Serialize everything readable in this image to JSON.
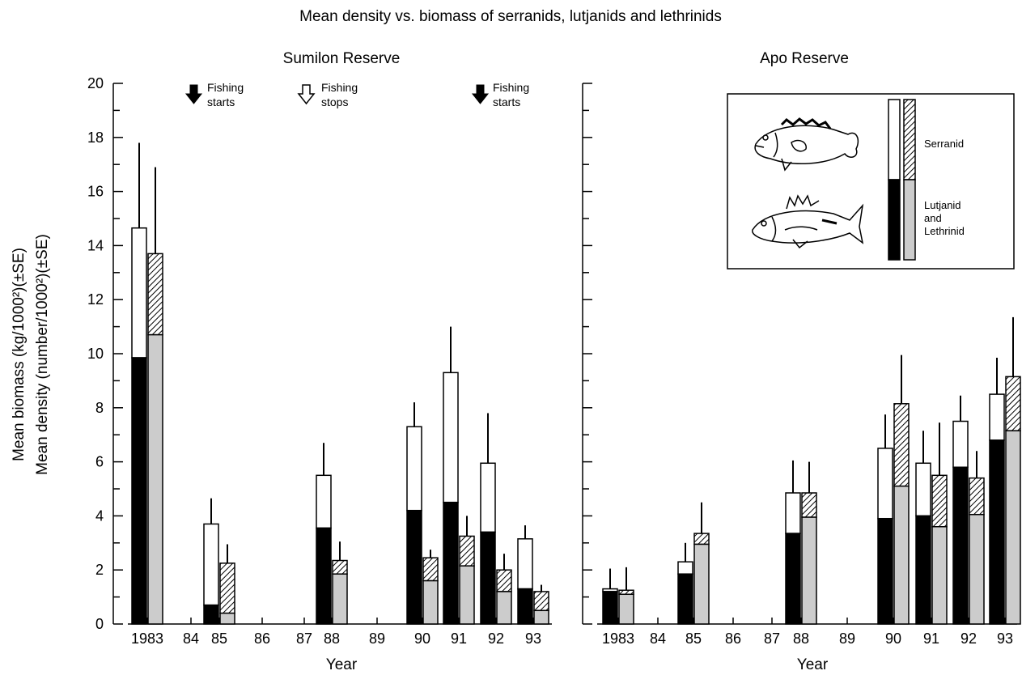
{
  "title": "Mean density vs. biomass of serranids, lutjanids and lethrinids",
  "ylabel_line1": "Mean biomass (kg/1000²)(±SE)",
  "ylabel_line2": "Mean density (number/1000²)(±SE)",
  "xlabel": "Year",
  "colors": {
    "biomass_serranid": "#ffffff",
    "biomass_lutjanid_lethrinid": "#000000",
    "density_serranid": "hatched",
    "density_lutjanid_lethrinid": "#cccccc"
  },
  "annotations": [
    {
      "year": "84",
      "arrow": "filled",
      "line1": "Fishing",
      "line2": "starts"
    },
    {
      "year": "87",
      "arrow": "open",
      "line1": "Fishing",
      "line2": "stops"
    },
    {
      "year": "91",
      "arrow": "filled",
      "line1": "Fishing",
      "line2": "starts"
    }
  ],
  "legend": {
    "serranid_label": "Serranid",
    "lutjanid_label_line1": "Lutjanid",
    "lutjanid_label_line2": "and",
    "lutjanid_label_line3": "Lethrinid",
    "icons": [
      "serranid-fish-icon",
      "lutjanid-fish-icon"
    ]
  },
  "chart_data": [
    {
      "type": "bar",
      "panel": "Sumilon Reserve",
      "title": "Sumilon Reserve",
      "xlabel": "Year",
      "categories": [
        "1983",
        "84",
        "85",
        "86",
        "87",
        "88",
        "89",
        "90",
        "91",
        "92",
        "93"
      ],
      "ylim": [
        0,
        20
      ],
      "yticks": [
        0,
        2,
        4,
        6,
        8,
        10,
        12,
        14,
        16,
        18,
        20
      ],
      "stacked": true,
      "biomass": {
        "lutjanid_lethrinid": [
          9.85,
          null,
          0.7,
          null,
          null,
          3.55,
          null,
          4.2,
          4.5,
          3.4,
          1.3
        ],
        "serranid": [
          4.8,
          null,
          3.0,
          null,
          null,
          1.95,
          null,
          3.1,
          4.8,
          2.55,
          1.85
        ],
        "total": [
          14.65,
          null,
          3.7,
          null,
          null,
          5.5,
          null,
          7.3,
          9.3,
          5.95,
          3.15
        ],
        "total_plus_se": [
          17.8,
          null,
          4.65,
          null,
          null,
          6.7,
          null,
          8.2,
          11.0,
          7.8,
          3.65
        ]
      },
      "density": {
        "lutjanid_lethrinid": [
          10.7,
          null,
          0.4,
          null,
          null,
          1.85,
          null,
          1.6,
          2.15,
          1.2,
          0.5
        ],
        "serranid": [
          3.0,
          null,
          1.85,
          null,
          null,
          0.5,
          null,
          0.85,
          1.1,
          0.8,
          0.7
        ],
        "total": [
          13.7,
          null,
          2.25,
          null,
          null,
          2.35,
          null,
          2.45,
          3.25,
          2.0,
          1.2
        ],
        "total_plus_se": [
          16.9,
          null,
          2.95,
          null,
          null,
          3.05,
          null,
          2.75,
          4.0,
          2.6,
          1.45
        ]
      }
    },
    {
      "type": "bar",
      "panel": "Apo Reserve",
      "title": "Apo Reserve",
      "xlabel": "Year",
      "categories": [
        "1983",
        "84",
        "85",
        "86",
        "87",
        "88",
        "89",
        "90",
        "91",
        "92",
        "93"
      ],
      "ylim": [
        0,
        20
      ],
      "yticks": [
        0,
        2,
        4,
        6,
        8,
        10,
        12,
        14,
        16,
        18,
        20
      ],
      "stacked": true,
      "biomass": {
        "lutjanid_lethrinid": [
          1.2,
          null,
          1.85,
          null,
          null,
          3.35,
          null,
          3.9,
          4.0,
          5.8,
          6.8
        ],
        "serranid": [
          0.1,
          null,
          0.45,
          null,
          null,
          1.5,
          null,
          2.6,
          1.95,
          1.7,
          1.7
        ],
        "total": [
          1.3,
          null,
          2.3,
          null,
          null,
          4.85,
          null,
          6.5,
          5.95,
          7.5,
          8.5
        ],
        "total_plus_se": [
          2.05,
          null,
          3.0,
          null,
          null,
          6.05,
          null,
          7.75,
          7.15,
          8.45,
          9.85
        ]
      },
      "density": {
        "lutjanid_lethrinid": [
          1.1,
          null,
          2.95,
          null,
          null,
          3.95,
          null,
          5.1,
          3.6,
          4.05,
          7.15
        ],
        "serranid": [
          0.15,
          null,
          0.4,
          null,
          null,
          0.9,
          null,
          3.05,
          1.9,
          1.35,
          2.0
        ],
        "total": [
          1.25,
          null,
          3.35,
          null,
          null,
          4.85,
          null,
          8.15,
          5.5,
          5.4,
          9.15
        ],
        "total_plus_se": [
          2.1,
          null,
          4.5,
          null,
          null,
          6.0,
          null,
          9.95,
          7.45,
          6.4,
          11.35
        ]
      }
    }
  ]
}
